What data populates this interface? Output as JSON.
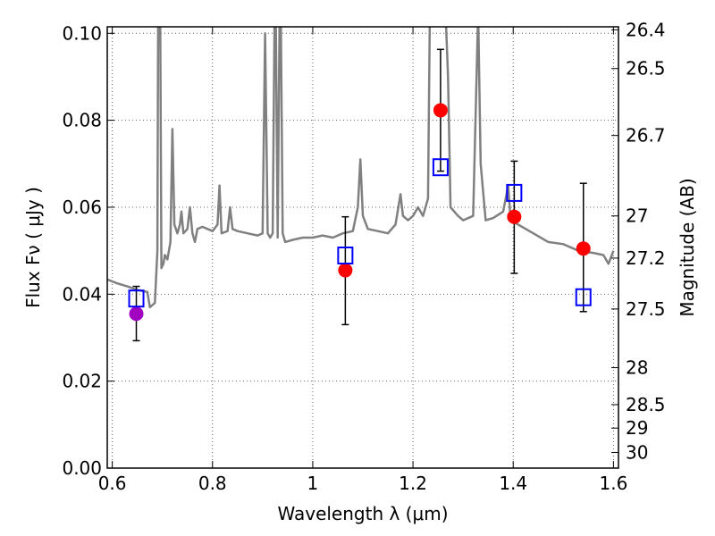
{
  "chart_data": {
    "type": "scatter",
    "xlabel": "Wavelength  λ (μm)",
    "ylabel": "Flux  Fν  ( μJy )",
    "y2label": "Magnitude (AB)",
    "xlim": [
      0.59,
      1.61
    ],
    "ylim": [
      0.0,
      0.1015
    ],
    "grid": true,
    "x_ticks": [
      0.6,
      0.8,
      1.0,
      1.2,
      1.4,
      1.6
    ],
    "x_tick_labels": [
      "0.6",
      "0.8",
      "1",
      "1.2",
      "1.4",
      "1.6"
    ],
    "y_ticks": [
      0.0,
      0.02,
      0.04,
      0.06,
      0.08,
      0.1
    ],
    "y_tick_labels": [
      "0.00",
      "0.02",
      "0.04",
      "0.06",
      "0.08",
      "0.10"
    ],
    "y2_ticks": [
      {
        "label": "26.4",
        "flux": 0.1008
      },
      {
        "label": "26.5",
        "flux": 0.0919
      },
      {
        "label": "26.7",
        "flux": 0.0765
      },
      {
        "label": "27",
        "flux": 0.058
      },
      {
        "label": "27.2",
        "flux": 0.0483
      },
      {
        "label": "27.5",
        "flux": 0.0366
      },
      {
        "label": "28",
        "flux": 0.0231
      },
      {
        "label": "28.5",
        "flux": 0.0146
      },
      {
        "label": "29",
        "flux": 0.0092
      },
      {
        "label": "30",
        "flux": 0.0036
      }
    ],
    "series": [
      {
        "kind": "line",
        "color": "#808080",
        "points": [
          [
            0.59,
            0.0434
          ],
          [
            0.61,
            0.0425
          ],
          [
            0.63,
            0.0418
          ],
          [
            0.65,
            0.041
          ],
          [
            0.67,
            0.0405
          ],
          [
            0.675,
            0.037
          ],
          [
            0.685,
            0.038
          ],
          [
            0.69,
            0.05
          ],
          [
            0.692,
            0.12
          ],
          [
            0.695,
            0.12
          ],
          [
            0.698,
            0.046
          ],
          [
            0.702,
            0.047
          ],
          [
            0.705,
            0.049
          ],
          [
            0.71,
            0.048
          ],
          [
            0.713,
            0.05
          ],
          [
            0.716,
            0.052
          ],
          [
            0.72,
            0.078
          ],
          [
            0.724,
            0.056
          ],
          [
            0.73,
            0.054
          ],
          [
            0.735,
            0.056
          ],
          [
            0.738,
            0.059
          ],
          [
            0.742,
            0.054
          ],
          [
            0.75,
            0.055
          ],
          [
            0.755,
            0.06
          ],
          [
            0.76,
            0.054
          ],
          [
            0.765,
            0.052
          ],
          [
            0.77,
            0.055
          ],
          [
            0.78,
            0.0555
          ],
          [
            0.79,
            0.055
          ],
          [
            0.8,
            0.0545
          ],
          [
            0.81,
            0.056
          ],
          [
            0.814,
            0.065
          ],
          [
            0.818,
            0.054
          ],
          [
            0.83,
            0.0545
          ],
          [
            0.835,
            0.06
          ],
          [
            0.84,
            0.055
          ],
          [
            0.85,
            0.0545
          ],
          [
            0.87,
            0.054
          ],
          [
            0.89,
            0.0535
          ],
          [
            0.9,
            0.054
          ],
          [
            0.905,
            0.1
          ],
          [
            0.91,
            0.054
          ],
          [
            0.915,
            0.053
          ],
          [
            0.92,
            0.054
          ],
          [
            0.925,
            0.12
          ],
          [
            0.93,
            0.053
          ],
          [
            0.935,
            0.12
          ],
          [
            0.94,
            0.054
          ],
          [
            0.945,
            0.052
          ],
          [
            0.96,
            0.0525
          ],
          [
            0.98,
            0.053
          ],
          [
            1.0,
            0.053
          ],
          [
            1.02,
            0.0535
          ],
          [
            1.04,
            0.053
          ],
          [
            1.06,
            0.054
          ],
          [
            1.08,
            0.0545
          ],
          [
            1.09,
            0.06
          ],
          [
            1.095,
            0.071
          ],
          [
            1.1,
            0.058
          ],
          [
            1.11,
            0.055
          ],
          [
            1.13,
            0.0545
          ],
          [
            1.15,
            0.054
          ],
          [
            1.165,
            0.056
          ],
          [
            1.175,
            0.063
          ],
          [
            1.18,
            0.058
          ],
          [
            1.19,
            0.057
          ],
          [
            1.2,
            0.058
          ],
          [
            1.21,
            0.06
          ],
          [
            1.22,
            0.058
          ],
          [
            1.23,
            0.062
          ],
          [
            1.235,
            0.12
          ],
          [
            1.245,
            0.12
          ],
          [
            1.25,
            0.115
          ],
          [
            1.26,
            0.12
          ],
          [
            1.27,
            0.09
          ],
          [
            1.275,
            0.06
          ],
          [
            1.29,
            0.058
          ],
          [
            1.3,
            0.057
          ],
          [
            1.32,
            0.058
          ],
          [
            1.33,
            0.105
          ],
          [
            1.335,
            0.07
          ],
          [
            1.345,
            0.057
          ],
          [
            1.36,
            0.0575
          ],
          [
            1.38,
            0.059
          ],
          [
            1.39,
            0.065
          ],
          [
            1.395,
            0.057
          ],
          [
            1.41,
            0.056
          ],
          [
            1.44,
            0.054
          ],
          [
            1.47,
            0.052
          ],
          [
            1.5,
            0.0515
          ],
          [
            1.53,
            0.05
          ],
          [
            1.56,
            0.0495
          ],
          [
            1.58,
            0.049
          ],
          [
            1.59,
            0.047
          ],
          [
            1.6,
            0.05
          ]
        ]
      },
      {
        "kind": "markers",
        "marker": "circle",
        "color": "#ff0000",
        "points": [
          {
            "x": 1.065,
            "y": 0.0455,
            "yerr_low": 0.033,
            "yerr_high": 0.0578
          },
          {
            "x": 1.255,
            "y": 0.0823,
            "yerr_low": 0.0683,
            "yerr_high": 0.0963
          },
          {
            "x": 1.402,
            "y": 0.0578,
            "yerr_low": 0.0448,
            "yerr_high": 0.0706
          },
          {
            "x": 1.54,
            "y": 0.0505,
            "yerr_low": 0.036,
            "yerr_high": 0.0655
          }
        ]
      },
      {
        "kind": "markers",
        "marker": "circle",
        "color": "#a000c0",
        "points": [
          {
            "x": 0.648,
            "y": 0.0355,
            "yerr_low": 0.0293,
            "yerr_high": 0.0418
          }
        ]
      },
      {
        "kind": "markers",
        "marker": "open-square",
        "color": "#0000ff",
        "points": [
          {
            "x": 0.648,
            "y": 0.039
          },
          {
            "x": 1.065,
            "y": 0.0489
          },
          {
            "x": 1.255,
            "y": 0.0692
          },
          {
            "x": 1.402,
            "y": 0.0633
          },
          {
            "x": 1.54,
            "y": 0.0393
          }
        ]
      }
    ]
  }
}
